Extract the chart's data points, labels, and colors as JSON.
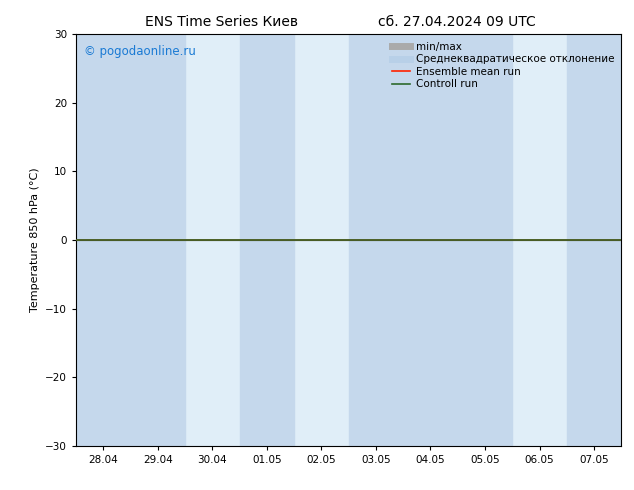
{
  "title_left": "ENS Time Series Киев",
  "title_right": "сб. 27.04.2024 09 UTC",
  "ylabel": "Temperature 850 hPa (°C)",
  "ylim": [
    -30,
    30
  ],
  "yticks": [
    -30,
    -20,
    -10,
    0,
    10,
    20,
    30
  ],
  "x_labels": [
    "28.04",
    "29.04",
    "30.04",
    "01.05",
    "02.05",
    "03.05",
    "04.05",
    "05.05",
    "06.05",
    "07.05"
  ],
  "x_positions": [
    0,
    1,
    2,
    3,
    4,
    5,
    6,
    7,
    8,
    9
  ],
  "xlim": [
    -0.5,
    9.5
  ],
  "watermark": "© pogodaonline.ru",
  "watermark_color": "#1a7ad4",
  "bg_color": "#ffffff",
  "plot_bg_color": "#e0eef8",
  "shaded_columns_dark": [
    0,
    1,
    3,
    5,
    6,
    7,
    9
  ],
  "shaded_color_dark": "#c5d8ec",
  "line_y": 0.0,
  "green_line_color": "#2d6a2d",
  "red_line_color": "#ff2200",
  "legend_items": [
    {
      "label": "min/max",
      "color": "#aaaaaa",
      "lw": 5,
      "ls": "-"
    },
    {
      "label": "Среднеквадратическое отклонение",
      "color": "#b8d0e8",
      "lw": 5,
      "ls": "-"
    },
    {
      "label": "Ensemble mean run",
      "color": "#ff2200",
      "lw": 1.2,
      "ls": "-"
    },
    {
      "label": "Controll run",
      "color": "#2d6a2d",
      "lw": 1.2,
      "ls": "-"
    }
  ],
  "title_fontsize": 10,
  "label_fontsize": 8,
  "tick_fontsize": 7.5,
  "legend_fontsize": 7.5,
  "watermark_fontsize": 8.5
}
